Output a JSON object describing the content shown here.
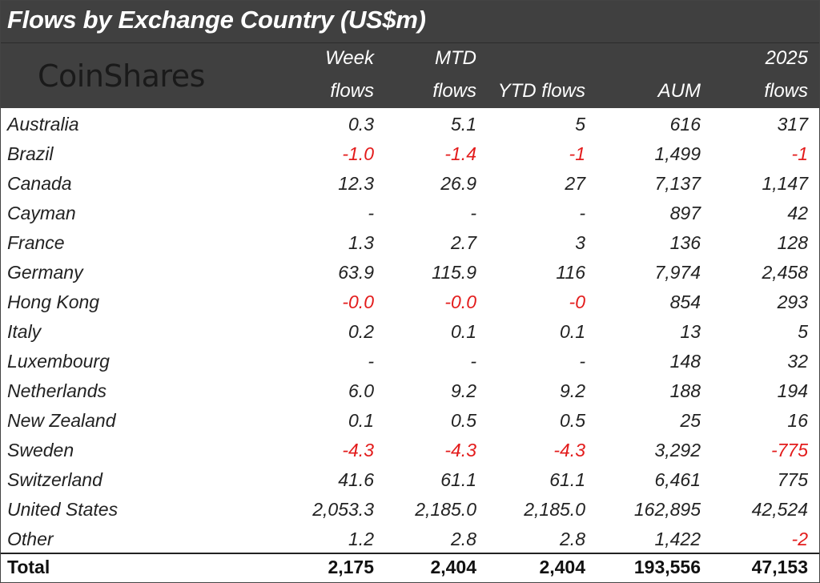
{
  "title": "Flows by Exchange Country (US$m)",
  "logo_text": "CoinShares",
  "columns": [
    {
      "line1": "Week",
      "line2": "flows"
    },
    {
      "line1": "MTD",
      "line2": "flows"
    },
    {
      "line1": "",
      "line2": "YTD flows"
    },
    {
      "line1": "",
      "line2": "AUM"
    },
    {
      "line1": "2025",
      "line2": "flows"
    }
  ],
  "rows": [
    {
      "name": "Australia",
      "values": [
        "0.3",
        "5.1",
        "5",
        "616",
        "317"
      ],
      "negative": [
        false,
        false,
        false,
        false,
        false
      ]
    },
    {
      "name": "Brazil",
      "values": [
        "-1.0",
        "-1.4",
        "-1",
        "1,499",
        "-1"
      ],
      "negative": [
        true,
        true,
        true,
        false,
        true
      ]
    },
    {
      "name": "Canada",
      "values": [
        "12.3",
        "26.9",
        "27",
        "7,137",
        "1,147"
      ],
      "negative": [
        false,
        false,
        false,
        false,
        false
      ]
    },
    {
      "name": "Cayman",
      "values": [
        "-",
        "-",
        "-",
        "897",
        "42"
      ],
      "negative": [
        false,
        false,
        false,
        false,
        false
      ]
    },
    {
      "name": "France",
      "values": [
        "1.3",
        "2.7",
        "3",
        "136",
        "128"
      ],
      "negative": [
        false,
        false,
        false,
        false,
        false
      ]
    },
    {
      "name": "Germany",
      "values": [
        "63.9",
        "115.9",
        "116",
        "7,974",
        "2,458"
      ],
      "negative": [
        false,
        false,
        false,
        false,
        false
      ]
    },
    {
      "name": "Hong Kong",
      "values": [
        "-0.0",
        "-0.0",
        "-0",
        "854",
        "293"
      ],
      "negative": [
        true,
        true,
        true,
        false,
        false
      ]
    },
    {
      "name": "Italy",
      "values": [
        "0.2",
        "0.1",
        "0.1",
        "13",
        "5"
      ],
      "negative": [
        false,
        false,
        false,
        false,
        false
      ]
    },
    {
      "name": "Luxembourg",
      "values": [
        "-",
        "-",
        "-",
        "148",
        "32"
      ],
      "negative": [
        false,
        false,
        false,
        false,
        false
      ]
    },
    {
      "name": "Netherlands",
      "values": [
        "6.0",
        "9.2",
        "9.2",
        "188",
        "194"
      ],
      "negative": [
        false,
        false,
        false,
        false,
        false
      ]
    },
    {
      "name": "New Zealand",
      "values": [
        "0.1",
        "0.5",
        "0.5",
        "25",
        "16"
      ],
      "negative": [
        false,
        false,
        false,
        false,
        false
      ]
    },
    {
      "name": "Sweden",
      "values": [
        "-4.3",
        "-4.3",
        "-4.3",
        "3,292",
        "-775"
      ],
      "negative": [
        true,
        true,
        true,
        false,
        true
      ]
    },
    {
      "name": "Switzerland",
      "values": [
        "41.6",
        "61.1",
        "61.1",
        "6,461",
        "775"
      ],
      "negative": [
        false,
        false,
        false,
        false,
        false
      ]
    },
    {
      "name": "United States",
      "values": [
        "2,053.3",
        "2,185.0",
        "2,185.0",
        "162,895",
        "42,524"
      ],
      "negative": [
        false,
        false,
        false,
        false,
        false
      ]
    },
    {
      "name": "Other",
      "values": [
        "1.2",
        "2.8",
        "2.8",
        "1,422",
        "-2"
      ],
      "negative": [
        false,
        false,
        false,
        false,
        true
      ]
    }
  ],
  "total": {
    "name": "Total",
    "values": [
      "2,175",
      "2,404",
      "2,404",
      "193,556",
      "47,153"
    ]
  },
  "colors": {
    "header_bg": "#404040",
    "header_text": "#ffffff",
    "negative": "#e31b1b",
    "body_text": "#222222"
  }
}
